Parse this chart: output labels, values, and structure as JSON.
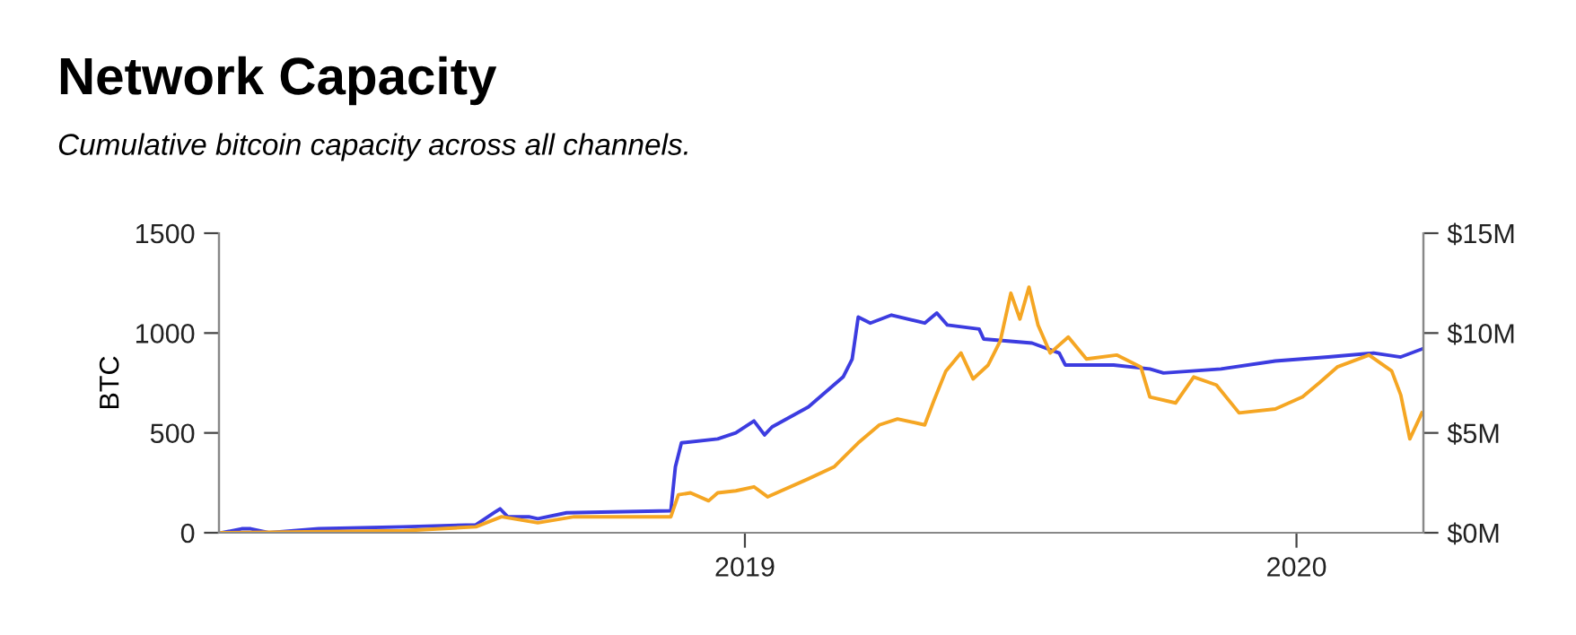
{
  "chart_data": {
    "type": "line",
    "title": "Network Capacity",
    "subtitle": "Cumulative bitcoin capacity across all channels.",
    "ylabel": "BTC",
    "xlim": [
      "2018-01-18",
      "2020-03-25"
    ],
    "xticks": [
      {
        "value": "2019-01-01",
        "label": "2019"
      },
      {
        "value": "2020-01-01",
        "label": "2020"
      }
    ],
    "ylim": [
      0,
      1500
    ],
    "yticks": [
      0,
      500,
      1000,
      1500
    ],
    "y2lim": [
      0,
      15
    ],
    "y2ticks": [
      {
        "value": 0,
        "label": "$0M"
      },
      {
        "value": 5,
        "label": "$5M"
      },
      {
        "value": 10,
        "label": "$10M"
      },
      {
        "value": 15,
        "label": "$15M"
      }
    ],
    "marker": "none",
    "line_style": "solid",
    "series": [
      {
        "color": "#f5a623",
        "axis": "y2",
        "x": [
          "2018-01-20",
          "2018-05-20",
          "2018-07-07",
          "2018-07-24",
          "2018-08-17",
          "2018-09-10",
          "2018-11-13",
          "2018-11-18",
          "2018-11-26",
          "2018-12-08",
          "2018-12-14",
          "2018-12-26",
          "2019-01-07",
          "2019-01-16",
          "2019-02-12",
          "2019-03-01",
          "2019-03-17",
          "2019-03-31",
          "2019-04-12",
          "2019-04-30",
          "2019-05-06",
          "2019-05-14",
          "2019-05-24",
          "2019-06-01",
          "2019-06-11",
          "2019-06-19",
          "2019-06-26",
          "2019-07-02",
          "2019-07-08",
          "2019-07-14",
          "2019-07-22",
          "2019-08-03",
          "2019-08-15",
          "2019-09-04",
          "2019-09-20",
          "2019-09-26",
          "2019-10-13",
          "2019-10-25",
          "2019-11-09",
          "2019-11-24",
          "2019-12-18",
          "2020-01-05",
          "2020-01-16",
          "2020-01-28",
          "2020-02-18",
          "2020-03-04",
          "2020-03-10",
          "2020-03-16",
          "2020-03-24"
        ],
        "values": [
          0,
          0.1,
          0.3,
          0.8,
          0.5,
          0.8,
          0.8,
          1.9,
          2,
          1.6,
          2,
          2.1,
          2.3,
          1.8,
          2.7,
          3.3,
          4.5,
          5.4,
          5.7,
          5.4,
          6.6,
          8.1,
          9,
          7.7,
          8.4,
          9.6,
          12,
          10.7,
          12.3,
          10.4,
          9,
          9.8,
          8.7,
          8.9,
          8.3,
          6.8,
          6.5,
          7.8,
          7.4,
          6,
          6.2,
          6.8,
          7.5,
          8.3,
          8.9,
          8.1,
          6.9,
          4.7,
          6
        ]
      },
      {
        "color": "#3c3ce0",
        "x": [
          "2018-01-20",
          "2018-02-02",
          "2018-02-08",
          "2018-02-20",
          "2018-03-25",
          "2018-05-20",
          "2018-07-07",
          "2018-07-19",
          "2018-07-23",
          "2018-07-28",
          "2018-08-11",
          "2018-08-17",
          "2018-09-05",
          "2018-11-13",
          "2018-11-16",
          "2018-11-20",
          "2018-12-14",
          "2018-12-26",
          "2019-01-07",
          "2019-01-14",
          "2019-01-19",
          "2019-02-12",
          "2019-03-07",
          "2019-03-13",
          "2019-03-17",
          "2019-03-25",
          "2019-04-08",
          "2019-04-30",
          "2019-05-08",
          "2019-05-15",
          "2019-06-05",
          "2019-06-08",
          "2019-07-10",
          "2019-07-28",
          "2019-08-01",
          "2019-09-02",
          "2019-09-26",
          "2019-10-05",
          "2019-11-12",
          "2019-12-18",
          "2020-01-22",
          "2020-02-21",
          "2020-03-10",
          "2020-03-24"
        ],
        "values": [
          0,
          20,
          20,
          0,
          20,
          30,
          40,
          100,
          120,
          80,
          80,
          70,
          100,
          110,
          330,
          450,
          470,
          500,
          560,
          490,
          530,
          630,
          780,
          870,
          1080,
          1050,
          1090,
          1050,
          1100,
          1040,
          1020,
          970,
          950,
          900,
          840,
          840,
          820,
          800,
          820,
          860,
          880,
          900,
          880,
          920
        ]
      }
    ]
  }
}
